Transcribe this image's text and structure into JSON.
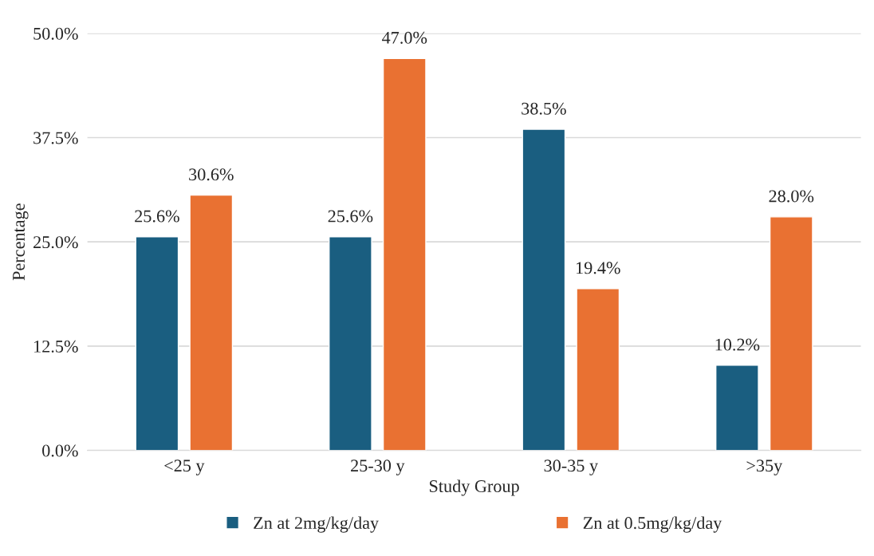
{
  "chart_data": {
    "type": "bar",
    "xlabel": "Study Group",
    "ylabel": "Percentage",
    "categories": [
      "<25 y",
      "25-30 y",
      "30-35 y",
      ">35y"
    ],
    "series": [
      {
        "name": "Zn at 2mg/kg/day",
        "color": "#1a5e80",
        "values": [
          25.6,
          25.6,
          38.5,
          10.2
        ],
        "value_labels": [
          "25.6%",
          "25.6%",
          "38.5%",
          "10.2%"
        ]
      },
      {
        "name": "Zn at 0.5mg/kg/day",
        "color": "#e97132",
        "values": [
          30.6,
          47.0,
          19.4,
          28.0
        ],
        "value_labels": [
          "30.6%",
          "47.0%",
          "19.4%",
          "28.0%"
        ]
      }
    ],
    "ylim": [
      0,
      50
    ],
    "yticks": [
      {
        "value": 0,
        "label": "0.0%"
      },
      {
        "value": 12.5,
        "label": "12.5%"
      },
      {
        "value": 25,
        "label": "25.0%"
      },
      {
        "value": 37.5,
        "label": "37.5%"
      },
      {
        "value": 50,
        "label": "50.0%"
      }
    ],
    "grid": "y",
    "legend": "bottom"
  }
}
